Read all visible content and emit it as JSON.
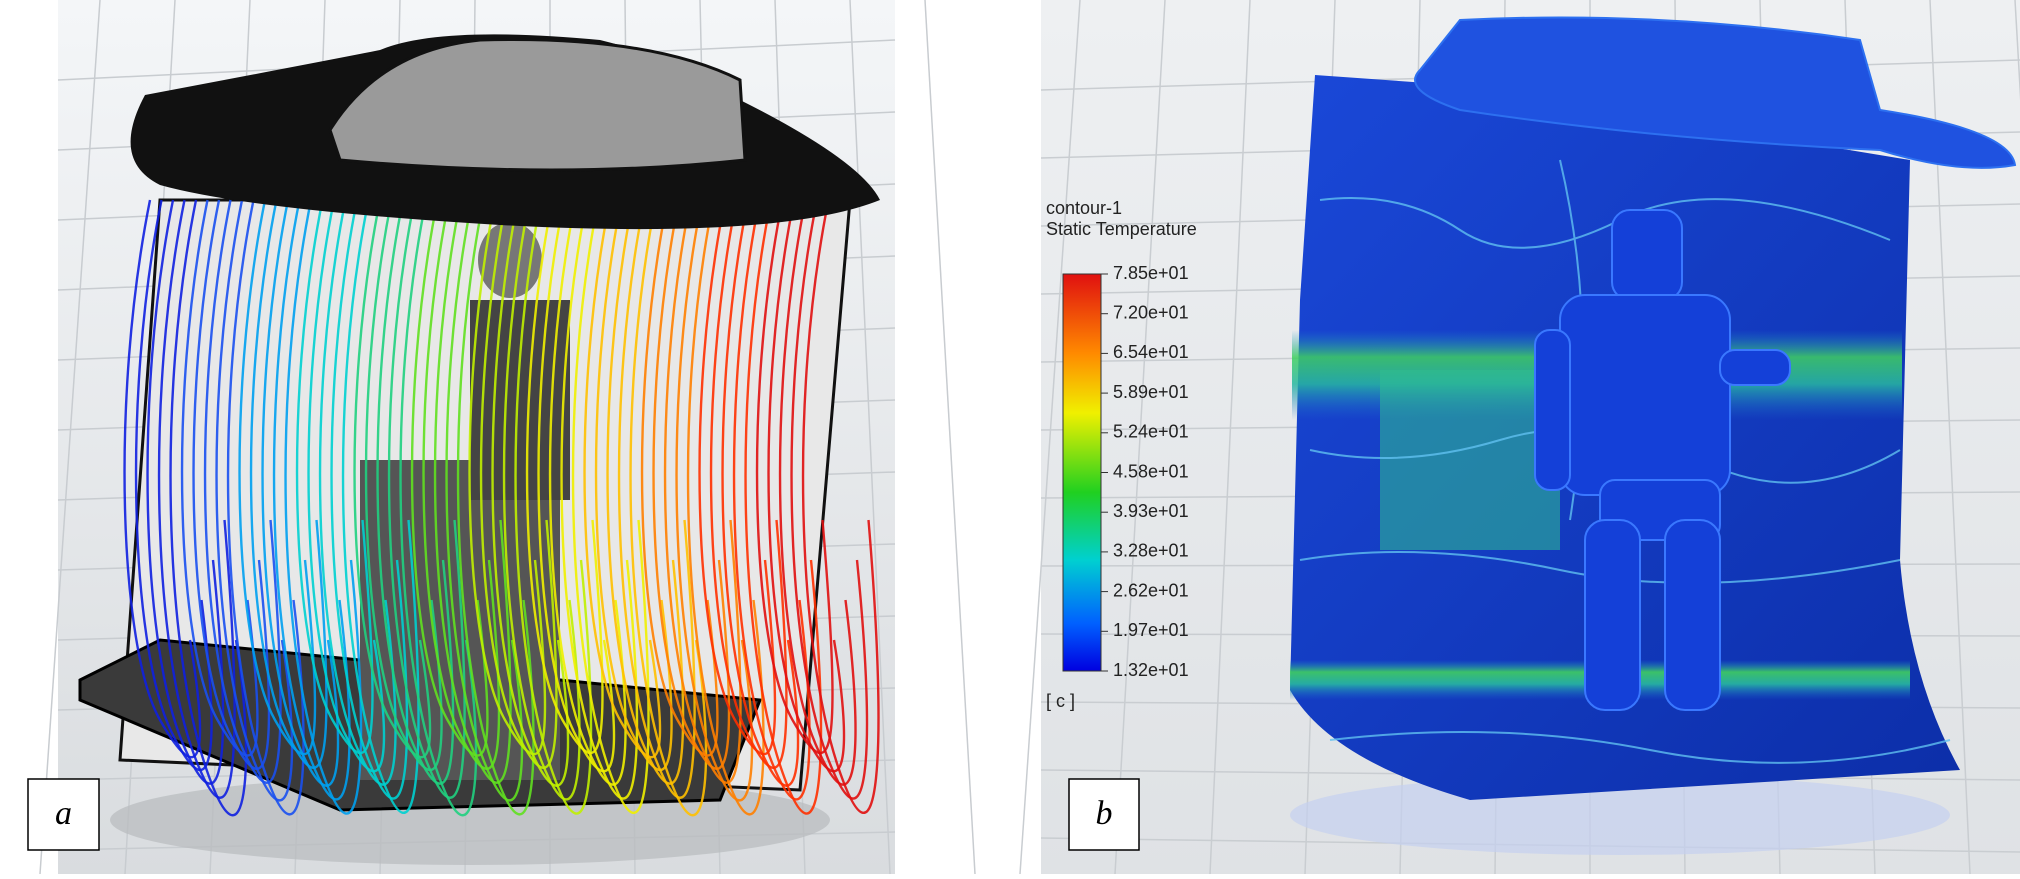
{
  "panels": [
    {
      "label": "a"
    },
    {
      "label": "b",
      "legend": {
        "title": "contour-1",
        "variable": "Static Temperature",
        "unit": "[ c ]",
        "ticks": [
          "7.85e+01",
          "7.20e+01",
          "6.54e+01",
          "5.89e+01",
          "5.24e+01",
          "4.58e+01",
          "3.93e+01",
          "3.28e+01",
          "2.62e+01",
          "1.97e+01",
          "1.32e+01"
        ]
      }
    }
  ]
}
